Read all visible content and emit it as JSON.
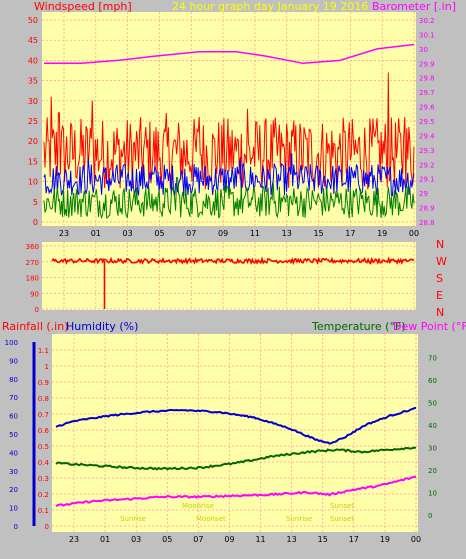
{
  "header": {
    "windspeed_label": "Windspeed [mph]",
    "title": "24 hour graph day   January 19 2016",
    "barometer_label": "Barometer [.in]"
  },
  "colors": {
    "panel_bg": "#ffffaa",
    "page_bg": "#c0c0c0",
    "grid": "#ff9999",
    "wind_gust": "#ff0000",
    "wind_avg": "#0000ff",
    "wind_min": "#008000",
    "barometer": "#ff00ff",
    "direction": "#ff0000",
    "humidity": "#0000cc",
    "temperature": "#006600",
    "dewpoint": "#ff00ff",
    "sun_text": "#cccc00",
    "title_text": "#ffff00"
  },
  "chart_data": [
    {
      "id": "wind",
      "type": "line",
      "x_tick_labels": [
        "23",
        "01",
        "03",
        "05",
        "07",
        "09",
        "11",
        "13",
        "15",
        "17",
        "19",
        "00"
      ],
      "y_left": {
        "label": "Windspeed [mph]",
        "ticks": [
          0,
          5,
          10,
          15,
          20,
          25,
          30,
          35,
          40,
          45,
          50
        ],
        "range": [
          0,
          50
        ]
      },
      "y_right": {
        "label": "Barometer [.in]",
        "ticks": [
          "28.8",
          "28.9",
          "29",
          "29.1",
          "29.2",
          "29.3",
          "29.4",
          "29.5",
          "29.6",
          "29.7",
          "29.8",
          "29.9",
          "30",
          "30.1",
          "30.2"
        ],
        "range": [
          28.8,
          30.2
        ]
      },
      "grid": true,
      "series": [
        {
          "axis": "left",
          "color_key": "wind_gust",
          "base": 17,
          "spread": 9,
          "spikes": [
            [
              0.02,
              31
            ],
            [
              0.04,
              27
            ],
            [
              0.13,
              30
            ],
            [
              0.33,
              27
            ],
            [
              0.42,
              26
            ],
            [
              0.55,
              28
            ],
            [
              0.93,
              37
            ],
            [
              0.975,
              26
            ]
          ]
        },
        {
          "axis": "left",
          "color_key": "wind_avg",
          "base": 10.5,
          "spread": 4,
          "spikes": [
            [
              0.12,
              16
            ],
            [
              0.53,
              16
            ],
            [
              0.67,
              17
            ]
          ]
        },
        {
          "axis": "left",
          "color_key": "wind_min",
          "base": 5,
          "spread": 4,
          "spikes": [
            [
              0.36,
              11
            ],
            [
              0.62,
              10
            ]
          ]
        },
        {
          "axis": "right",
          "color_key": "barometer",
          "points": [
            [
              0,
              29.9
            ],
            [
              0.1,
              29.9
            ],
            [
              0.2,
              29.92
            ],
            [
              0.3,
              29.95
            ],
            [
              0.42,
              29.98
            ],
            [
              0.52,
              29.98
            ],
            [
              0.6,
              29.95
            ],
            [
              0.7,
              29.9
            ],
            [
              0.8,
              29.92
            ],
            [
              0.9,
              30
            ],
            [
              1,
              30.03
            ]
          ]
        }
      ]
    },
    {
      "id": "direction",
      "type": "line",
      "y_left": {
        "ticks": [
          0,
          90,
          180,
          270,
          360
        ],
        "range": [
          0,
          360
        ]
      },
      "compass_labels": [
        "N",
        "W",
        "S",
        "E",
        "N"
      ],
      "grid": true,
      "series": [
        {
          "color_key": "direction",
          "base": 275,
          "spread": 12,
          "drops": [
            [
              0.145,
              0
            ],
            [
              0.88,
              255
            ]
          ]
        }
      ]
    },
    {
      "id": "lower",
      "type": "line",
      "header": {
        "rain": "Rainfall (.in)",
        "humidity": "Humidity (%)",
        "temperature": "Temperature (°F)",
        "dewpoint": "Dew Point (°F)"
      },
      "x_tick_labels": [
        "23",
        "01",
        "03",
        "05",
        "07",
        "09",
        "11",
        "13",
        "15",
        "17",
        "19",
        "00"
      ],
      "y_humidity": {
        "ticks": [
          0,
          10,
          20,
          30,
          40,
          50,
          60,
          70,
          80,
          90,
          100
        ],
        "range": [
          0,
          100
        ]
      },
      "y_rain": {
        "ticks": [
          "0",
          "0.1",
          "0.2",
          "0.3",
          "0.4",
          "0.5",
          "0.6",
          "0.7",
          "0.8",
          "0.9",
          "1",
          "1.1"
        ],
        "range": [
          0,
          1.15
        ]
      },
      "y_temp": {
        "ticks": [
          0,
          10,
          20,
          30,
          40,
          50,
          60,
          70
        ],
        "range": [
          -5,
          77
        ]
      },
      "grid": true,
      "series": [
        {
          "name_key": "humidity",
          "color_key": "humidity",
          "points": [
            [
              0,
              54
            ],
            [
              0.05,
              57
            ],
            [
              0.15,
              60
            ],
            [
              0.25,
              62
            ],
            [
              0.35,
              63
            ],
            [
              0.45,
              62
            ],
            [
              0.55,
              59
            ],
            [
              0.65,
              53
            ],
            [
              0.72,
              47
            ],
            [
              0.76,
              45
            ],
            [
              0.8,
              48
            ],
            [
              0.86,
              55
            ],
            [
              0.93,
              60
            ],
            [
              1,
              64
            ]
          ]
        },
        {
          "name_key": "temperature",
          "color_key": "temperature",
          "points": [
            [
              0,
              23
            ],
            [
              0.1,
              22
            ],
            [
              0.2,
              21
            ],
            [
              0.3,
              20.5
            ],
            [
              0.4,
              21
            ],
            [
              0.5,
              23
            ],
            [
              0.6,
              26
            ],
            [
              0.7,
              28
            ],
            [
              0.78,
              29
            ],
            [
              0.85,
              28
            ],
            [
              0.92,
              29
            ],
            [
              1,
              30
            ]
          ]
        },
        {
          "name_key": "dewpoint",
          "color_key": "dewpoint",
          "points": [
            [
              0,
              4
            ],
            [
              0.1,
              6
            ],
            [
              0.2,
              7
            ],
            [
              0.3,
              8
            ],
            [
              0.4,
              8
            ],
            [
              0.5,
              8.5
            ],
            [
              0.6,
              9
            ],
            [
              0.7,
              10
            ],
            [
              0.76,
              9
            ],
            [
              0.82,
              11
            ],
            [
              0.9,
              13
            ],
            [
              1,
              17
            ]
          ]
        }
      ],
      "annotations": [
        "Sunrise",
        "Sunset",
        "Moonrise",
        "Moonset",
        "Sunrise",
        "Sunset"
      ]
    }
  ]
}
